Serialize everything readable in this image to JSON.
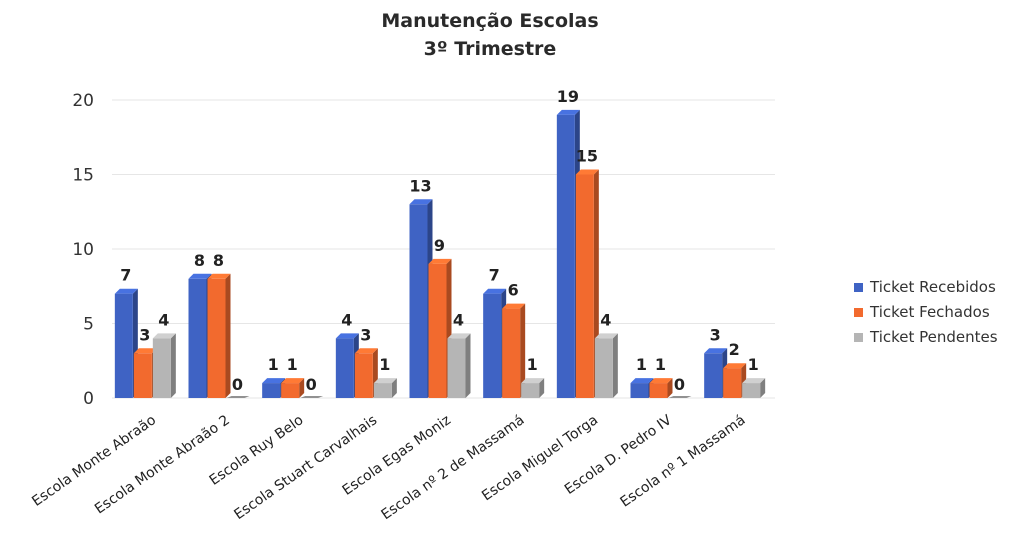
{
  "chart_data": {
    "type": "bar",
    "title": "Manutenção Escolas",
    "subtitle": "3º Trimestre",
    "xlabel": "",
    "ylabel": "",
    "ylim": [
      0,
      20
    ],
    "yticks": [
      "0",
      "5",
      "10",
      "15",
      "20"
    ],
    "grid": true,
    "legend_position": "right",
    "categories": [
      "Escola Monte Abraão",
      "Escola Monte Abraão 2",
      "Escola Ruy Belo",
      "Escola Stuart Carvalhais",
      "Escola Egas Moniz",
      "Escola nº 2 de Massamá",
      "Escola Miguel Torga",
      "Escola D. Pedro IV",
      "Escola nº 1 Massamá"
    ],
    "series": [
      {
        "name": "Ticket Recebidos",
        "color": "#3f63c4",
        "values": [
          7,
          8,
          1,
          4,
          13,
          7,
          19,
          1,
          3
        ]
      },
      {
        "name": "Ticket Fechados",
        "color": "#f26a2e",
        "values": [
          3,
          8,
          1,
          3,
          9,
          6,
          15,
          1,
          2
        ]
      },
      {
        "name": "Ticket Pendentes",
        "color": "#b5b5b5",
        "values": [
          4,
          0,
          0,
          1,
          4,
          1,
          4,
          0,
          1
        ]
      }
    ]
  }
}
